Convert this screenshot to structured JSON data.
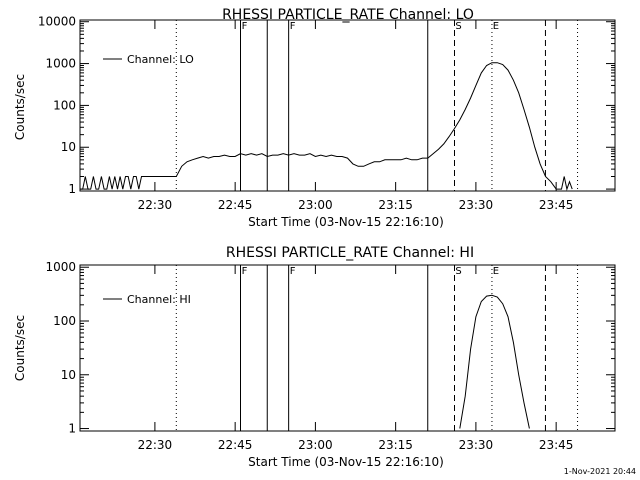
{
  "footer": {
    "timestamp": "1-Nov-2021 20:44"
  },
  "chart_data": [
    {
      "type": "line",
      "title": "RHESSI PARTICLE_RATE Channel: LO",
      "xlabel": "Start Time (03-Nov-15 22:16:10)",
      "ylabel": "Counts/sec",
      "y_scale": "log",
      "xlim": [
        "22:16",
        "23:56"
      ],
      "ylim": [
        0.9,
        11000
      ],
      "x_ticks": [
        "22:30",
        "22:45",
        "23:00",
        "23:15",
        "23:30",
        "23:45"
      ],
      "y_ticks": [
        "1",
        "10",
        "100",
        "1000",
        "10000"
      ],
      "legend": {
        "label": "Channel: LO",
        "placement": "top-left"
      },
      "markers": [
        {
          "time": "22:34",
          "style": "dotted",
          "label": ""
        },
        {
          "time": "22:46",
          "style": "solid",
          "label": "F"
        },
        {
          "time": "22:51",
          "style": "solid",
          "label": ""
        },
        {
          "time": "22:55",
          "style": "solid",
          "label": "F"
        },
        {
          "time": "23:21",
          "style": "solid",
          "label": ""
        },
        {
          "time": "23:26",
          "style": "dashed",
          "label": "S"
        },
        {
          "time": "23:33",
          "style": "dotted",
          "label": "E"
        },
        {
          "time": "23:43",
          "style": "dashed",
          "label": ""
        },
        {
          "time": "23:49",
          "style": "dotted",
          "label": ""
        }
      ],
      "series": [
        {
          "name": "Channel: LO",
          "x": [
            "22:16",
            "22:16:30",
            "22:17",
            "22:17:30",
            "22:18",
            "22:18:30",
            "22:19",
            "22:19:30",
            "22:20",
            "22:20:30",
            "22:21",
            "22:21:30",
            "22:22",
            "22:22:30",
            "22:23",
            "22:23:30",
            "22:24",
            "22:24:30",
            "22:25",
            "22:25:30",
            "22:26",
            "22:26:30",
            "22:27",
            "22:27:30",
            "22:28",
            "22:28:30",
            "22:29",
            "22:29:30",
            "22:30",
            "22:31",
            "22:32",
            "22:33",
            "22:34",
            "22:35",
            "22:36",
            "22:37",
            "22:38",
            "22:39",
            "22:40",
            "22:41",
            "22:42",
            "22:43",
            "22:44",
            "22:45",
            "22:46",
            "22:47",
            "22:48",
            "22:49",
            "22:50",
            "22:51",
            "22:52",
            "22:53",
            "22:54",
            "22:55",
            "22:56",
            "22:57",
            "22:58",
            "22:59",
            "23:00",
            "23:01",
            "23:02",
            "23:03",
            "23:04",
            "23:05",
            "23:06",
            "23:07",
            "23:08",
            "23:09",
            "23:10",
            "23:11",
            "23:12",
            "23:13",
            "23:14",
            "23:15",
            "23:16",
            "23:17",
            "23:18",
            "23:19",
            "23:20",
            "23:21",
            "23:22",
            "23:23",
            "23:24",
            "23:25",
            "23:26",
            "23:27",
            "23:28",
            "23:29",
            "23:30",
            "23:31",
            "23:32",
            "23:33",
            "23:34",
            "23:35",
            "23:36",
            "23:37",
            "23:38",
            "23:39",
            "23:40",
            "23:41",
            "23:42",
            "23:43",
            "23:44",
            "23:45",
            "23:46",
            "23:46:30",
            "23:47",
            "23:47:30",
            "23:48"
          ],
          "values": [
            1,
            1,
            2,
            1,
            1,
            2,
            1,
            1,
            2,
            1,
            1,
            2,
            1,
            2,
            1,
            2,
            1,
            2,
            2,
            1,
            2,
            2,
            1,
            2,
            2,
            2,
            2,
            2,
            2,
            2,
            2,
            2,
            2,
            3.5,
            4.5,
            5,
            5.5,
            6,
            5.5,
            6,
            6,
            6.5,
            6,
            6,
            7,
            6.5,
            7,
            6.5,
            7,
            6,
            6.5,
            6.5,
            7,
            6.5,
            7,
            6.5,
            6.5,
            7,
            6,
            6.5,
            6,
            6.5,
            6,
            6,
            5.5,
            4,
            3.5,
            3.5,
            4,
            4.5,
            4.5,
            5,
            5,
            5,
            5,
            5.5,
            5,
            5,
            5.5,
            5.5,
            7,
            9,
            12,
            18,
            28,
            45,
            80,
            150,
            300,
            600,
            900,
            1050,
            1050,
            950,
            700,
            400,
            200,
            80,
            30,
            10,
            4,
            2,
            1.5,
            1,
            1,
            2,
            1,
            1.5,
            1
          ]
        }
      ]
    },
    {
      "type": "line",
      "title": "RHESSI PARTICLE_RATE Channel: HI",
      "xlabel": "Start Time (03-Nov-15 22:16:10)",
      "ylabel": "Counts/sec",
      "y_scale": "log",
      "xlim": [
        "22:16",
        "23:56"
      ],
      "ylim": [
        0.9,
        1100
      ],
      "x_ticks": [
        "22:30",
        "22:45",
        "23:00",
        "23:15",
        "23:30",
        "23:45"
      ],
      "y_ticks": [
        "1",
        "10",
        "100",
        "1000"
      ],
      "legend": {
        "label": "Channel: HI",
        "placement": "top-left"
      },
      "markers": [
        {
          "time": "22:34",
          "style": "dotted",
          "label": ""
        },
        {
          "time": "22:46",
          "style": "solid",
          "label": "F"
        },
        {
          "time": "22:51",
          "style": "solid",
          "label": ""
        },
        {
          "time": "22:55",
          "style": "solid",
          "label": "F"
        },
        {
          "time": "23:21",
          "style": "solid",
          "label": ""
        },
        {
          "time": "23:26",
          "style": "dashed",
          "label": "S"
        },
        {
          "time": "23:33",
          "style": "dotted",
          "label": "E"
        },
        {
          "time": "23:43",
          "style": "dashed",
          "label": ""
        },
        {
          "time": "23:49",
          "style": "dotted",
          "label": ""
        }
      ],
      "series": [
        {
          "name": "Channel: HI",
          "x": [
            "23:27",
            "23:28",
            "23:29",
            "23:30",
            "23:31",
            "23:32",
            "23:33",
            "23:34",
            "23:35",
            "23:36",
            "23:37",
            "23:38",
            "23:39",
            "23:40"
          ],
          "values": [
            1,
            4,
            30,
            120,
            230,
            290,
            300,
            280,
            210,
            120,
            40,
            10,
            3,
            1
          ]
        }
      ]
    }
  ]
}
